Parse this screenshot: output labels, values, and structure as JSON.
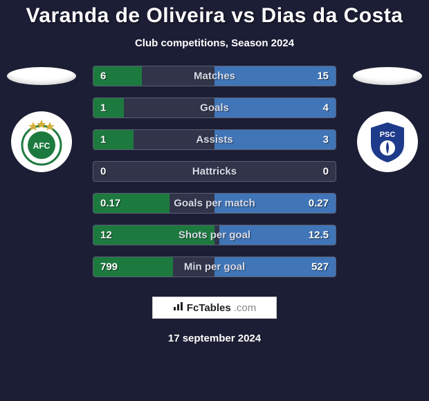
{
  "title": "Varanda de Oliveira vs Dias da Costa",
  "subtitle": "Club competitions, Season 2024",
  "date": "17 september 2024",
  "footer": {
    "brand": "FcTables",
    "suffix": ".com"
  },
  "colors": {
    "background": "#1b1e34",
    "row_background": "#32354a",
    "row_border": "#5a5d73",
    "left_bar": "#1d7a3f",
    "right_bar": "#4075b8",
    "text": "#ffffff",
    "label": "#d9dce8"
  },
  "badges": {
    "left": {
      "primary": "#1d7a3f",
      "letters": "AFC"
    },
    "right": {
      "primary": "#1e3a8a",
      "letters": "PSC"
    }
  },
  "rows": [
    {
      "label": "Matches",
      "left": "6",
      "right": "15",
      "l_num": 6,
      "r_num": 15,
      "max": 15,
      "invert": false
    },
    {
      "label": "Goals",
      "left": "1",
      "right": "4",
      "l_num": 1,
      "r_num": 4,
      "max": 4,
      "invert": false
    },
    {
      "label": "Assists",
      "left": "1",
      "right": "3",
      "l_num": 1,
      "r_num": 3,
      "max": 3,
      "invert": false
    },
    {
      "label": "Hattricks",
      "left": "0",
      "right": "0",
      "l_num": 0,
      "r_num": 0,
      "max": 1,
      "invert": false
    },
    {
      "label": "Goals per match",
      "left": "0.17",
      "right": "0.27",
      "l_num": 0.17,
      "r_num": 0.27,
      "max": 0.27,
      "invert": false
    },
    {
      "label": "Shots per goal",
      "left": "12",
      "right": "12.5",
      "l_num": 12,
      "r_num": 12.5,
      "max": 12.5,
      "invert": true
    },
    {
      "label": "Min per goal",
      "left": "799",
      "right": "527",
      "l_num": 799,
      "r_num": 527,
      "max": 799,
      "invert": true
    }
  ]
}
